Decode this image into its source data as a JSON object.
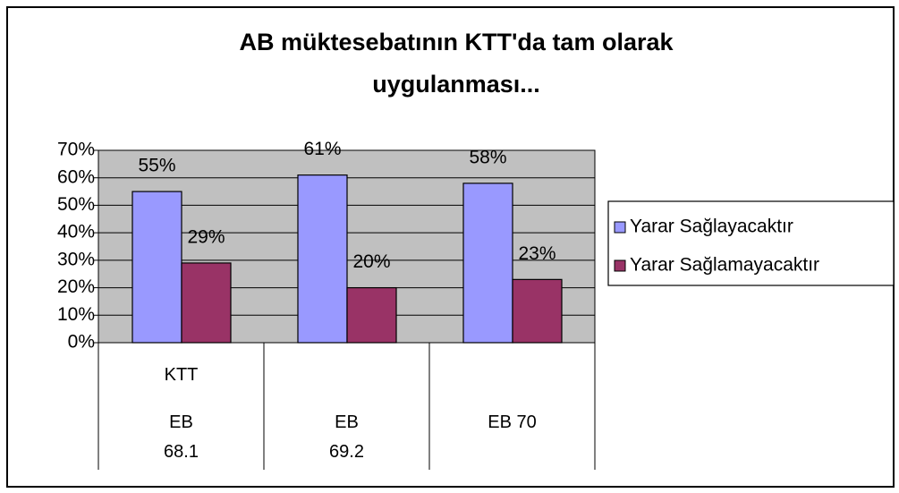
{
  "chart_data": {
    "type": "bar",
    "title": "AB müktesebatının KTT'da tam olarak uygulanması...",
    "categories": [
      "EB 68.1",
      "EB 69.2",
      "EB 70"
    ],
    "category_group_labels": [
      "KTT",
      null,
      null
    ],
    "series": [
      {
        "name": "Yarar Sağlayacaktır",
        "color": "#9999ff",
        "values": [
          55,
          61,
          58
        ],
        "value_labels": [
          "55%",
          "61%",
          "58%"
        ]
      },
      {
        "name": "Yarar Sağlamayacaktır",
        "color": "#993366",
        "values": [
          29,
          20,
          23
        ],
        "value_labels": [
          "29%",
          "20%",
          "23%"
        ]
      }
    ],
    "ylim": [
      0,
      70
    ],
    "yticks": [
      {
        "value": 0,
        "label": "0%"
      },
      {
        "value": 10,
        "label": "10%"
      },
      {
        "value": 20,
        "label": "20%"
      },
      {
        "value": 30,
        "label": "30%"
      },
      {
        "value": 40,
        "label": "40%"
      },
      {
        "value": 50,
        "label": "50%"
      },
      {
        "value": 60,
        "label": "60%"
      },
      {
        "value": 70,
        "label": "70%"
      }
    ],
    "grid": true,
    "plot_background": "#c0c0c0",
    "legend": "right"
  }
}
